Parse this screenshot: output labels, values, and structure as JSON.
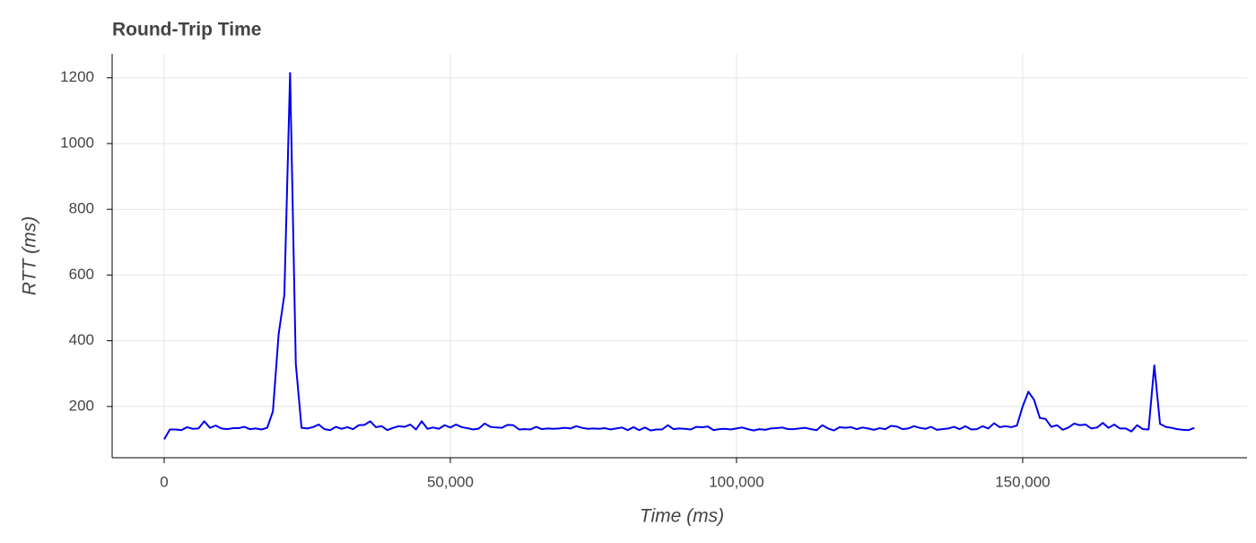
{
  "chart_data": {
    "type": "line",
    "title": "Round-Trip Time",
    "x_label": "Time (ms)",
    "y_label": "RTT (ms)",
    "color": "#0000ee",
    "grid": true,
    "x": [
      0,
      1000,
      2000,
      3000,
      4000,
      5000,
      6000,
      7000,
      8000,
      9000,
      10000,
      11000,
      12000,
      13000,
      14000,
      15000,
      16000,
      17000,
      18000,
      19000,
      20000,
      21000,
      22000,
      23000,
      24000,
      25000,
      26000,
      27000,
      28000,
      29000,
      30000,
      31000,
      32000,
      33000,
      34000,
      35000,
      36000,
      37000,
      38000,
      39000,
      40000,
      41000,
      42000,
      43000,
      44000,
      45000,
      46000,
      47000,
      48000,
      49000,
      50000,
      51000,
      52000,
      53000,
      54000,
      55000,
      56000,
      57000,
      58000,
      59000,
      60000,
      61000,
      62000,
      63000,
      64000,
      65000,
      66000,
      67000,
      68000,
      69000,
      70000,
      71000,
      72000,
      73000,
      74000,
      75000,
      76000,
      77000,
      78000,
      79000,
      80000,
      81000,
      82000,
      83000,
      84000,
      85000,
      86000,
      87000,
      88000,
      89000,
      90000,
      91000,
      92000,
      93000,
      94000,
      95000,
      96000,
      97000,
      98000,
      99000,
      100000,
      101000,
      102000,
      103000,
      104000,
      105000,
      106000,
      107000,
      108000,
      109000,
      110000,
      111000,
      112000,
      113000,
      114000,
      115000,
      116000,
      117000,
      118000,
      119000,
      120000,
      121000,
      122000,
      123000,
      124000,
      125000,
      126000,
      127000,
      128000,
      129000,
      130000,
      131000,
      132000,
      133000,
      134000,
      135000,
      136000,
      137000,
      138000,
      139000,
      140000,
      141000,
      142000,
      143000,
      144000,
      145000,
      146000,
      147000,
      148000,
      149000,
      150000,
      151000,
      152000,
      153000,
      154000,
      155000,
      156000,
      157000,
      158000,
      159000,
      160000,
      161000,
      162000,
      163000,
      164000,
      165000,
      166000,
      167000,
      168000,
      169000,
      170000,
      171000,
      172000,
      173000,
      174000,
      175000,
      176000,
      177000,
      178000,
      179000,
      180000
    ],
    "values": [
      100,
      130,
      130,
      128,
      137,
      132,
      133,
      155,
      135,
      142,
      133,
      131,
      134,
      134,
      138,
      131,
      133,
      130,
      135,
      185,
      420,
      540,
      1215,
      330,
      135,
      133,
      137,
      145,
      131,
      128,
      138,
      132,
      137,
      131,
      143,
      144,
      155,
      137,
      140,
      128,
      135,
      140,
      138,
      145,
      130,
      155,
      132,
      136,
      132,
      143,
      136,
      145,
      137,
      134,
      130,
      133,
      148,
      138,
      136,
      135,
      144,
      143,
      130,
      131,
      130,
      138,
      131,
      133,
      132,
      133,
      135,
      133,
      140,
      135,
      132,
      133,
      132,
      134,
      130,
      133,
      136,
      128,
      137,
      128,
      136,
      127,
      130,
      130,
      143,
      131,
      133,
      132,
      130,
      138,
      137,
      139,
      128,
      131,
      132,
      130,
      133,
      136,
      131,
      127,
      131,
      129,
      133,
      134,
      136,
      131,
      131,
      133,
      135,
      131,
      128,
      143,
      133,
      127,
      137,
      135,
      137,
      131,
      136,
      133,
      129,
      134,
      131,
      141,
      139,
      131,
      133,
      140,
      135,
      132,
      138,
      129,
      131,
      133,
      138,
      131,
      140,
      130,
      131,
      140,
      133,
      149,
      137,
      140,
      137,
      142,
      200,
      245,
      220,
      165,
      162,
      138,
      143,
      129,
      136,
      148,
      143,
      145,
      133,
      136,
      150,
      135,
      145,
      133,
      133,
      124,
      143,
      131,
      130,
      325,
      147,
      138,
      135,
      131,
      129,
      128,
      135
    ],
    "xlim": [
      -9090,
      189200
    ],
    "ylim": [
      44,
      1273
    ],
    "xticks": [
      0,
      {
        "value": 50000,
        "label": "50,000"
      },
      {
        "value": 100000,
        "label": "100,000"
      },
      {
        "value": 150000,
        "label": "150,000"
      }
    ],
    "yticks": [
      200,
      400,
      600,
      800,
      1000,
      1200
    ]
  }
}
